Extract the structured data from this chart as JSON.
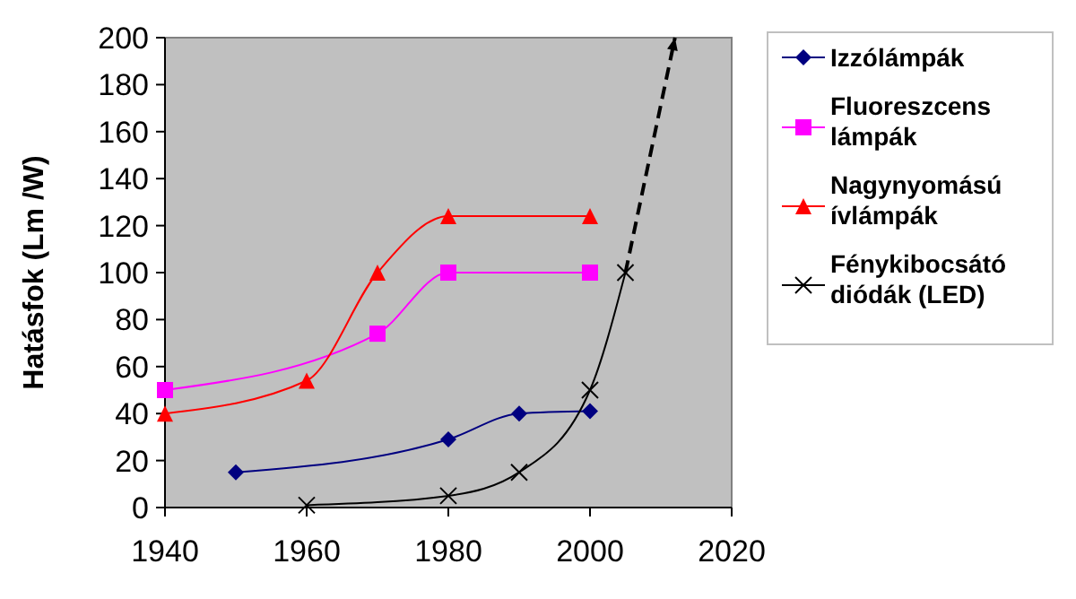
{
  "chart_data": {
    "type": "line",
    "ylabel": "Hatásfok (Lm /W)",
    "xlim": [
      1940,
      2020
    ],
    "xticks": [
      1940,
      1960,
      1980,
      2000,
      2020
    ],
    "ylim": [
      0,
      200
    ],
    "yticks": [
      0,
      20,
      40,
      60,
      80,
      100,
      120,
      140,
      160,
      180,
      200
    ],
    "grid": false,
    "legend": "right",
    "series": [
      {
        "name": "Izzólámpák",
        "color": "#000080",
        "marker": "diamond",
        "x": [
          1950,
          1980,
          1990,
          2000
        ],
        "values": [
          15,
          29,
          40,
          41
        ]
      },
      {
        "name": "Fluoreszcens lámpák",
        "color": "#ff00ff",
        "marker": "square",
        "x": [
          1940,
          1970,
          1980,
          2000
        ],
        "values": [
          50,
          74,
          100,
          100
        ]
      },
      {
        "name": "Nagynyomású ívlámpák",
        "color": "#ff0000",
        "marker": "triangle",
        "x": [
          1940,
          1960,
          1970,
          1980,
          2000
        ],
        "values": [
          40,
          54,
          100,
          124,
          124
        ]
      },
      {
        "name": "Fénykibocsátó diódák (LED)",
        "color": "#000000",
        "marker": "cross",
        "x": [
          1960,
          1980,
          1990,
          2000,
          2005
        ],
        "values": [
          1,
          5,
          15,
          50,
          100
        ]
      },
      {
        "color": "#000000",
        "marker": "none",
        "line_style": "dashed",
        "x": [
          2005,
          2012
        ],
        "values": [
          100,
          200
        ]
      }
    ]
  }
}
